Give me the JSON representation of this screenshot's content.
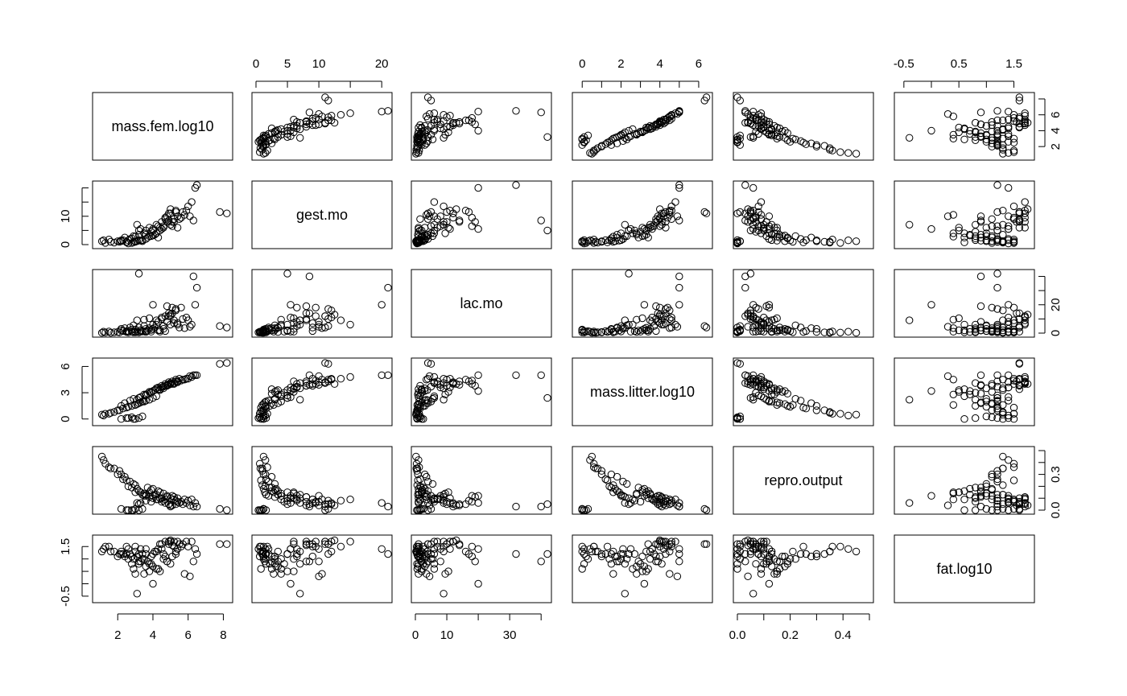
{
  "chart_data": {
    "type": "scatter",
    "variables": [
      {
        "name": "mass.fem.log10",
        "range": [
          0.8,
          8.3
        ],
        "ticks": [
          "2",
          "4",
          "6",
          "8"
        ],
        "ticks_vals": [
          2,
          4,
          6,
          8
        ]
      },
      {
        "name": "gest.mo",
        "range": [
          0,
          21
        ],
        "ticks": [
          "0",
          "10"
        ],
        "ticks_vals": [
          0,
          10
        ]
      },
      {
        "name": "lac.mo",
        "range": [
          0,
          42
        ],
        "ticks": [
          "0",
          "20"
        ],
        "ticks_vals": [
          0,
          20
        ]
      },
      {
        "name": "mass.litter.log10",
        "range": [
          -0.3,
          6.5
        ],
        "ticks": [
          "0",
          "3",
          "6"
        ],
        "ticks_vals": [
          0,
          3,
          6
        ]
      },
      {
        "name": "repro.output",
        "range": [
          0,
          0.5
        ],
        "ticks": [
          "0.0",
          "0.3"
        ],
        "ticks_vals": [
          0.0,
          0.3
        ]
      },
      {
        "name": "fat.log10",
        "range": [
          -0.6,
          1.8
        ],
        "ticks": [
          "-0.5",
          "1.5"
        ],
        "ticks_vals": [
          -0.5,
          1.5
        ]
      }
    ],
    "top_axes": [
      {
        "col": 1,
        "ticks": [
          "0",
          "5",
          "10",
          "20"
        ],
        "ticks_vals": [
          0,
          5,
          10,
          20
        ],
        "minor_vals": [
          15
        ]
      },
      {
        "col": 3,
        "ticks": [
          "0",
          "2",
          "4",
          "6"
        ],
        "ticks_vals": [
          0,
          2,
          4,
          6
        ],
        "minor_vals": [
          1,
          3,
          5
        ]
      },
      {
        "col": 5,
        "ticks": [
          "-0.5",
          "0.5",
          "1.5"
        ],
        "ticks_vals": [
          -0.5,
          0.5,
          1.5
        ],
        "minor_vals": [
          0,
          1
        ]
      }
    ],
    "bottom_axes": [
      {
        "col": 0,
        "ticks": [
          "2",
          "4",
          "6",
          "8"
        ],
        "ticks_vals": [
          2,
          4,
          6,
          8
        ],
        "minor_vals": []
      },
      {
        "col": 2,
        "ticks": [
          "0",
          "10",
          "30"
        ],
        "ticks_vals": [
          0,
          10,
          30
        ],
        "minor_vals": [
          20,
          40
        ]
      },
      {
        "col": 4,
        "ticks": [
          "0.0",
          "0.2",
          "0.4"
        ],
        "ticks_vals": [
          0.0,
          0.2,
          0.4
        ],
        "minor_vals": [
          0.1,
          0.3,
          0.5
        ]
      }
    ],
    "right_axes": [
      {
        "row": 0,
        "ticks": [
          "2",
          "4",
          "6"
        ],
        "ticks_vals": [
          2,
          4,
          6
        ],
        "minor_vals": [
          8
        ]
      },
      {
        "row": 2,
        "ticks": [
          "0",
          "20"
        ],
        "ticks_vals": [
          0,
          20
        ],
        "minor_vals": [
          10,
          30,
          40
        ]
      },
      {
        "row": 4,
        "ticks": [
          "0.0",
          "0.3"
        ],
        "ticks_vals": [
          0.0,
          0.3
        ],
        "minor_vals": [
          0.1,
          0.2,
          0.4,
          0.5
        ]
      }
    ],
    "left_axes": [
      {
        "row": 1,
        "ticks": [
          "0",
          "10"
        ],
        "ticks_vals": [
          0,
          10
        ],
        "minor_vals": [
          5,
          15,
          20
        ]
      },
      {
        "row": 3,
        "ticks": [
          "0",
          "3",
          "6"
        ],
        "ticks_vals": [
          0,
          3,
          6
        ],
        "minor_vals": []
      },
      {
        "row": 5,
        "ticks": [
          "-0.5",
          "1.5"
        ],
        "ticks_vals": [
          -0.5,
          1.5
        ],
        "minor_vals": [
          0,
          0.5,
          1
        ]
      }
    ],
    "observations": [
      [
        3.0,
        1.0,
        0.6,
        1.6,
        0.21,
        1.3
      ],
      [
        3.1,
        1.2,
        1.0,
        1.7,
        0.18,
        1.1
      ],
      [
        3.3,
        1.4,
        2.0,
        1.9,
        0.15,
        0.9
      ],
      [
        3.4,
        1.6,
        1.2,
        2.0,
        0.13,
        1.2
      ],
      [
        3.6,
        2.0,
        3.0,
        2.1,
        0.12,
        1.4
      ],
      [
        2.1,
        1.0,
        0.5,
        1.0,
        0.33,
        1.2
      ],
      [
        2.5,
        0.8,
        0.8,
        1.3,
        0.25,
        1.5
      ],
      [
        2.6,
        1.5,
        1.5,
        1.4,
        0.2,
        1.0
      ],
      [
        2.8,
        2.2,
        2.5,
        1.5,
        0.19,
        0.8
      ],
      [
        3.0,
        2.8,
        1.0,
        1.6,
        0.15,
        0.4
      ],
      [
        1.2,
        1.5,
        1.0,
        0.4,
        0.42,
        1.4
      ],
      [
        1.5,
        1.8,
        1.2,
        0.6,
        0.36,
        1.5
      ],
      [
        1.8,
        0.7,
        0.6,
        0.8,
        0.35,
        1.3
      ],
      [
        2.0,
        1.2,
        0.8,
        1.0,
        0.3,
        1.1
      ],
      [
        2.3,
        1.6,
        1.5,
        1.2,
        0.26,
        1.2
      ],
      [
        3.2,
        3.5,
        4.0,
        1.8,
        0.16,
        0.9
      ],
      [
        3.5,
        4.0,
        5.0,
        2.0,
        0.12,
        1.0
      ],
      [
        3.8,
        3.0,
        3.5,
        2.2,
        0.11,
        0.8
      ],
      [
        4.0,
        5.0,
        6.0,
        2.4,
        0.1,
        1.2
      ],
      [
        4.2,
        4.0,
        6.0,
        2.6,
        0.09,
        0.6
      ],
      [
        2.2,
        1.2,
        2.0,
        0.0,
        0.01,
        1.3
      ],
      [
        2.5,
        1.0,
        1.5,
        0.1,
        0.0,
        1.2
      ],
      [
        2.8,
        0.6,
        1.0,
        0.2,
        0.0,
        1.1
      ],
      [
        3.0,
        1.2,
        2.5,
        0.0,
        0.01,
        1.5
      ],
      [
        3.2,
        1.6,
        0.5,
        0.1,
        0.0,
        0.8
      ],
      [
        3.4,
        1.2,
        1.5,
        0.3,
        0.01,
        1.0
      ],
      [
        2.6,
        0.4,
        0.5,
        0.1,
        0.0,
        1.4
      ],
      [
        2.9,
        0.8,
        0.6,
        0.0,
        0.0,
        0.6
      ],
      [
        4.3,
        6.5,
        8.0,
        3.6,
        0.09,
        1.4
      ],
      [
        4.5,
        8.0,
        10.0,
        3.8,
        0.07,
        1.6
      ],
      [
        4.7,
        9.5,
        12.0,
        4.0,
        0.06,
        1.7
      ],
      [
        4.9,
        11.0,
        12.0,
        4.2,
        0.05,
        1.7
      ],
      [
        5.1,
        8.0,
        14.0,
        4.3,
        0.04,
        1.55
      ],
      [
        5.3,
        12.0,
        16.0,
        4.5,
        0.05,
        1.3
      ],
      [
        5.5,
        9.0,
        4.0,
        4.6,
        0.06,
        1.6
      ],
      [
        5.0,
        7.0,
        6.0,
        4.1,
        0.1,
        0.8
      ],
      [
        4.8,
        10.0,
        8.0,
        3.9,
        0.12,
        0.9
      ],
      [
        4.6,
        6.0,
        3.0,
        3.5,
        0.14,
        1.0
      ],
      [
        4.4,
        5.0,
        2.0,
        3.3,
        0.15,
        0.5
      ],
      [
        4.6,
        6.5,
        5.0,
        3.7,
        0.08,
        1.2
      ],
      [
        5.2,
        9.0,
        7.0,
        4.0,
        0.09,
        1.5
      ],
      [
        5.4,
        10.0,
        6.0,
        4.2,
        0.07,
        1.4
      ],
      [
        5.7,
        11.5,
        10.0,
        4.5,
        0.05,
        1.6
      ],
      [
        5.9,
        12.0,
        11.0,
        4.6,
        0.06,
        1.7
      ],
      [
        6.0,
        13.5,
        9.0,
        4.6,
        0.08,
        1.5
      ],
      [
        6.2,
        15.0,
        6.0,
        4.8,
        0.09,
        1.7
      ],
      [
        6.4,
        20.0,
        20.0,
        5.0,
        0.06,
        1.4
      ],
      [
        7.8,
        11.5,
        5.0,
        6.3,
        0.01,
        1.6
      ],
      [
        8.2,
        11.0,
        4.0,
        6.4,
        0.0,
        1.6
      ],
      [
        6.1,
        10.0,
        4.5,
        4.9,
        0.04,
        0.3
      ],
      [
        5.8,
        10.5,
        3.5,
        4.5,
        0.09,
        0.4
      ],
      [
        4.3,
        2.5,
        2.0,
        3.4,
        0.16,
        0.6
      ],
      [
        4.0,
        3.2,
        3.0,
        3.2,
        0.18,
        0.7
      ],
      [
        3.7,
        2.5,
        1.8,
        2.9,
        0.19,
        0.9
      ],
      [
        3.9,
        3.0,
        2.2,
        3.1,
        0.17,
        1.1
      ],
      [
        4.1,
        3.5,
        3.8,
        3.3,
        0.13,
        1.3
      ],
      [
        5.0,
        11.0,
        12.0,
        4.1,
        0.03,
        1.7
      ],
      [
        5.0,
        12.5,
        13.0,
        4.0,
        0.04,
        1.75
      ],
      [
        4.9,
        8.5,
        14.0,
        3.9,
        0.05,
        1.6
      ],
      [
        5.6,
        9.5,
        18.0,
        4.4,
        0.07,
        1.5
      ],
      [
        6.3,
        8.5,
        40.0,
        5.0,
        0.03,
        0.9
      ],
      [
        3.2,
        5.0,
        42.0,
        2.4,
        0.05,
        1.2
      ],
      [
        3.3,
        5.5,
        1.0,
        2.5,
        0.06,
        1.4
      ],
      [
        3.6,
        5.0,
        1.5,
        2.7,
        0.08,
        1.2
      ],
      [
        4.4,
        6.0,
        1.0,
        3.4,
        0.1,
        1.6
      ],
      [
        4.8,
        8.0,
        19.0,
        3.8,
        0.11,
        0.9
      ],
      [
        5.1,
        6.5,
        18.0,
        4.0,
        0.12,
        1.1
      ],
      [
        4.2,
        7.0,
        9.0,
        3.5,
        0.13,
        1.3
      ],
      [
        3.8,
        6.0,
        10.5,
        3.1,
        0.15,
        0.5
      ],
      [
        3.5,
        4.0,
        9.5,
        2.8,
        0.14,
        0.4
      ],
      [
        2.9,
        3.0,
        5.5,
        2.3,
        0.22,
        1.0
      ],
      [
        2.7,
        2.0,
        4.0,
        2.1,
        0.24,
        1.2
      ],
      [
        2.4,
        2.5,
        3.5,
        1.8,
        0.28,
        1.1
      ],
      [
        1.6,
        1.0,
        0.3,
        0.7,
        0.35,
        1.3
      ],
      [
        1.3,
        0.6,
        0.4,
        0.6,
        0.39,
        1.5
      ],
      [
        1.1,
        1.2,
        0.2,
        0.5,
        0.45,
        1.3
      ],
      [
        3.1,
        7.0,
        9.0,
        2.2,
        0.06,
        -0.4
      ],
      [
        4.5,
        5.5,
        11.0,
        3.6,
        0.1,
        1.4
      ],
      [
        5.2,
        8.0,
        9.0,
        4.1,
        0.11,
        1.7
      ],
      [
        5.4,
        6.0,
        7.0,
        4.3,
        0.1,
        1.7
      ],
      [
        6.5,
        21.0,
        32.0,
        5.0,
        0.03,
        1.2
      ],
      [
        4.0,
        5.5,
        20.0,
        3.2,
        0.12,
        0.0
      ],
      [
        5.3,
        11.5,
        17.0,
        4.3,
        0.08,
        1.2
      ],
      [
        4.7,
        9.0,
        1.5,
        3.8,
        0.09,
        1.1
      ],
      [
        3.9,
        4.5,
        1.0,
        3.0,
        0.07,
        0.8
      ],
      [
        3.6,
        3.5,
        0.8,
        2.8,
        0.13,
        0.7
      ],
      [
        2.2,
        1.5,
        3.0,
        1.5,
        0.3,
        1.2
      ]
    ]
  }
}
